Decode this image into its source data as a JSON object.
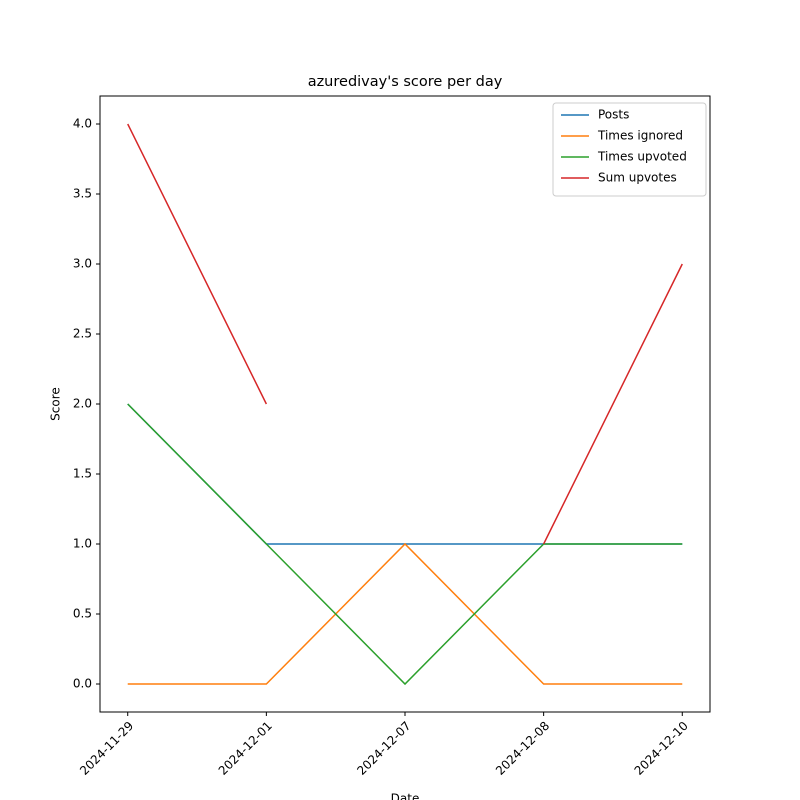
{
  "chart_data": {
    "type": "line",
    "title": "azuredivay's score per day",
    "xlabel": "Date",
    "ylabel": "Score",
    "categories": [
      "2024-11-29",
      "2024-12-01",
      "2024-12-07",
      "2024-12-08",
      "2024-12-10"
    ],
    "series": [
      {
        "name": "Posts",
        "color": "#1f77b4",
        "values": [
          2,
          1,
          1,
          1,
          1
        ]
      },
      {
        "name": "Times ignored",
        "color": "#ff7f0e",
        "values": [
          0,
          0,
          1,
          0,
          0
        ]
      },
      {
        "name": "Times upvoted",
        "color": "#2ca02c",
        "values": [
          2,
          1,
          0,
          1,
          1
        ]
      },
      {
        "name": "Sum upvotes",
        "color": "#d62728",
        "values": [
          4,
          2,
          null,
          1,
          3
        ]
      }
    ],
    "xlim": [
      -0.2,
      4.2
    ],
    "ylim": [
      -0.2,
      4.2
    ],
    "yticks": [
      {
        "value": 0,
        "label": "0.0"
      },
      0.5,
      {
        "value": 1,
        "label": "1.0"
      },
      1.5,
      {
        "value": 2,
        "label": "2.0"
      },
      2.5,
      {
        "value": 3,
        "label": "3.0"
      },
      3.5,
      {
        "value": 4,
        "label": "4.0"
      }
    ],
    "legend": "upper right"
  }
}
